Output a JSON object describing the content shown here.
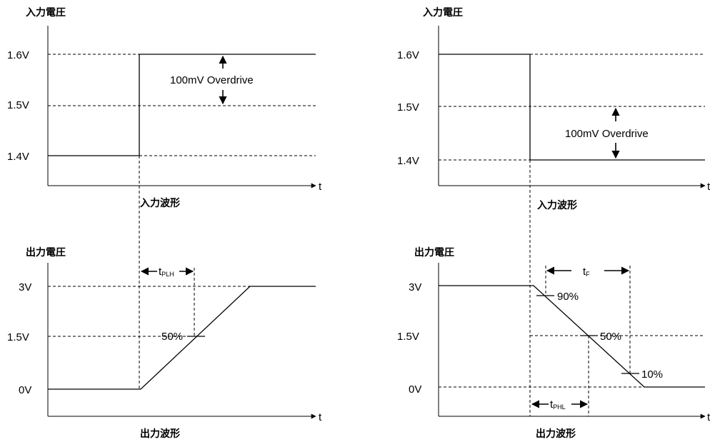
{
  "labels": {
    "input_voltage": "入力電圧",
    "output_voltage": "出力電圧",
    "input_waveform": "入力波形",
    "output_waveform": "出力波形",
    "t": "t",
    "v16": "1.6V",
    "v15": "1.5V",
    "v14": "1.4V",
    "v3": "3V",
    "v15_out": "1.5V",
    "v0": "0V",
    "overdrive": "100mV Overdrive",
    "t_main": "t",
    "plh_sub": "PLH",
    "phl_sub": "PHL",
    "f_sub": "F",
    "pct50": "50%",
    "pct90": "90%",
    "pct10": "10%"
  }
}
